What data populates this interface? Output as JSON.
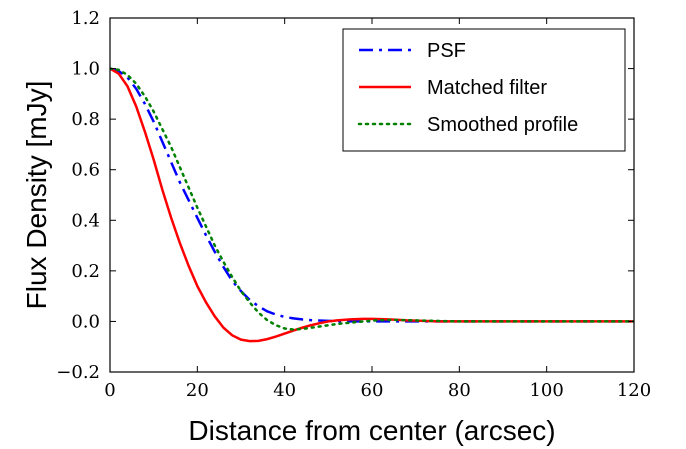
{
  "chart_data": {
    "type": "line",
    "xlabel": "Distance from center (arcsec)",
    "ylabel": "Flux Density [mJy]",
    "xlim": [
      0,
      120
    ],
    "ylim": [
      -0.2,
      1.2
    ],
    "x_ticks": [
      "0",
      "20",
      "40",
      "60",
      "80",
      "100",
      "120"
    ],
    "y_ticks": [
      "−0.2",
      "0.0",
      "0.2",
      "0.4",
      "0.6",
      "0.8",
      "1.0",
      "1.2"
    ],
    "grid": false,
    "legend_position": "top-right",
    "series": [
      {
        "name": "PSF",
        "color": "#0000ff",
        "style": "dashdot",
        "x": [
          0,
          2,
          4,
          6,
          8,
          10,
          12,
          14,
          16,
          18,
          20,
          22,
          24,
          26,
          28,
          30,
          32,
          34,
          36,
          38,
          40,
          42,
          44,
          46,
          50,
          55,
          60,
          65,
          70,
          80,
          90,
          100,
          110,
          120
        ],
        "y": [
          1.0,
          0.99,
          0.965,
          0.92,
          0.86,
          0.79,
          0.71,
          0.63,
          0.55,
          0.48,
          0.41,
          0.34,
          0.275,
          0.215,
          0.16,
          0.12,
          0.085,
          0.06,
          0.04,
          0.027,
          0.018,
          0.012,
          0.008,
          0.005,
          0.002,
          0.0,
          0.0,
          0.0,
          0.0,
          0.0,
          0.0,
          0.0,
          0.0,
          0.0
        ]
      },
      {
        "name": "Matched filter",
        "color": "#ff0000",
        "style": "solid",
        "x": [
          0,
          2,
          4,
          6,
          8,
          10,
          12,
          14,
          16,
          18,
          20,
          22,
          24,
          26,
          28,
          30,
          32,
          34,
          36,
          38,
          40,
          42,
          44,
          46,
          48,
          50,
          52,
          55,
          58,
          60,
          62,
          65,
          68,
          70,
          75,
          80,
          90,
          100,
          110,
          120
        ],
        "y": [
          1.0,
          0.98,
          0.93,
          0.85,
          0.75,
          0.64,
          0.52,
          0.41,
          0.31,
          0.22,
          0.14,
          0.075,
          0.02,
          -0.025,
          -0.055,
          -0.072,
          -0.078,
          -0.077,
          -0.07,
          -0.06,
          -0.048,
          -0.036,
          -0.025,
          -0.015,
          -0.007,
          0.0,
          0.004,
          0.008,
          0.01,
          0.01,
          0.009,
          0.007,
          0.004,
          0.003,
          0.0,
          0.0,
          0.0,
          0.0,
          0.0,
          0.0
        ]
      },
      {
        "name": "Smoothed profile",
        "color": "#008000",
        "style": "dotted",
        "x": [
          0,
          2,
          4,
          6,
          8,
          10,
          12,
          14,
          16,
          18,
          20,
          22,
          24,
          26,
          28,
          30,
          32,
          34,
          36,
          38,
          40,
          42,
          44,
          46,
          48,
          50,
          52,
          55,
          58,
          60,
          62,
          65,
          68,
          70,
          75,
          80,
          90,
          100,
          110,
          120
        ],
        "y": [
          1.0,
          0.995,
          0.975,
          0.94,
          0.89,
          0.83,
          0.76,
          0.69,
          0.61,
          0.53,
          0.45,
          0.375,
          0.3,
          0.235,
          0.175,
          0.12,
          0.075,
          0.035,
          0.005,
          -0.015,
          -0.028,
          -0.032,
          -0.03,
          -0.025,
          -0.02,
          -0.015,
          -0.01,
          -0.005,
          0.0,
          0.003,
          0.005,
          0.006,
          0.005,
          0.004,
          0.002,
          0.0,
          0.0,
          0.0,
          0.0,
          0.0
        ]
      }
    ]
  }
}
